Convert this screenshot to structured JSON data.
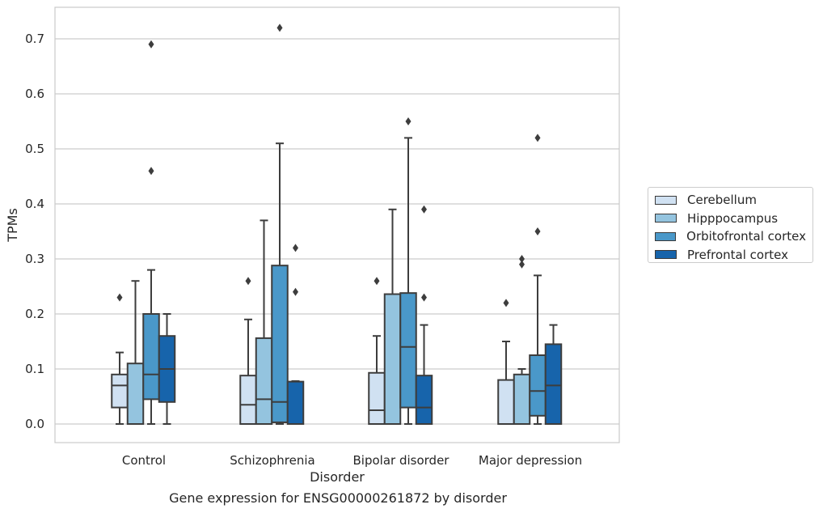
{
  "chart_data": {
    "type": "boxplot",
    "title": "Gene expression for ENSG00000261872 by disorder",
    "xlabel": "Disorder",
    "ylabel": "TPMs",
    "ylim": [
      -0.035,
      0.757
    ],
    "yticks": [
      0.0,
      0.1,
      0.2,
      0.3,
      0.4,
      0.5,
      0.6,
      0.7
    ],
    "ytick_labels": [
      "0.0",
      "0.1",
      "0.2",
      "0.3",
      "0.4",
      "0.5",
      "0.6",
      "0.7"
    ],
    "grid": true,
    "legend_position": "right",
    "categories": [
      "Control",
      "Schizophrenia",
      "Bipolar disorder",
      "Major depression"
    ],
    "series": [
      {
        "name": "Cerebellum",
        "color": "#d0e1f2",
        "boxes": [
          {
            "whislo": 0.0,
            "q1": 0.03,
            "med": 0.07,
            "q3": 0.09,
            "whishi": 0.13,
            "fliers": [
              0.23
            ]
          },
          {
            "whislo": 0.0,
            "q1": 0.0,
            "med": 0.035,
            "q3": 0.088,
            "whishi": 0.19,
            "fliers": [
              0.26
            ]
          },
          {
            "whislo": 0.0,
            "q1": 0.0,
            "med": 0.025,
            "q3": 0.093,
            "whishi": 0.16,
            "fliers": [
              0.26
            ]
          },
          {
            "whislo": 0.0,
            "q1": 0.0,
            "med": 0.0,
            "q3": 0.08,
            "whishi": 0.15,
            "fliers": [
              0.22
            ]
          }
        ]
      },
      {
        "name": "Hipppocampus",
        "color": "#94c4df",
        "boxes": [
          {
            "whislo": 0.0,
            "q1": 0.0,
            "med": 0.0,
            "q3": 0.11,
            "whishi": 0.26,
            "fliers": []
          },
          {
            "whislo": 0.0,
            "q1": 0.0,
            "med": 0.045,
            "q3": 0.156,
            "whishi": 0.37,
            "fliers": []
          },
          {
            "whislo": 0.0,
            "q1": 0.0,
            "med": 0.0,
            "q3": 0.236,
            "whishi": 0.39,
            "fliers": []
          },
          {
            "whislo": 0.0,
            "q1": 0.0,
            "med": 0.0,
            "q3": 0.09,
            "whishi": 0.1,
            "fliers": [
              0.29,
              0.3
            ]
          }
        ]
      },
      {
        "name": "Orbitofrontal cortex",
        "color": "#4a98c9",
        "boxes": [
          {
            "whislo": 0.0,
            "q1": 0.045,
            "med": 0.09,
            "q3": 0.2,
            "whishi": 0.28,
            "fliers": [
              0.46,
              0.69
            ]
          },
          {
            "whislo": 0.0,
            "q1": 0.003,
            "med": 0.04,
            "q3": 0.288,
            "whishi": 0.51,
            "fliers": [
              0.72
            ]
          },
          {
            "whislo": 0.0,
            "q1": 0.03,
            "med": 0.14,
            "q3": 0.238,
            "whishi": 0.52,
            "fliers": [
              0.55
            ]
          },
          {
            "whislo": 0.0,
            "q1": 0.015,
            "med": 0.06,
            "q3": 0.125,
            "whishi": 0.27,
            "fliers": [
              0.35,
              0.52
            ]
          }
        ]
      },
      {
        "name": "Prefrontal cortex",
        "color": "#1764ab",
        "boxes": [
          {
            "whislo": 0.0,
            "q1": 0.04,
            "med": 0.1,
            "q3": 0.16,
            "whishi": 0.2,
            "fliers": []
          },
          {
            "whislo": 0.0,
            "q1": 0.0,
            "med": 0.0,
            "q3": 0.077,
            "whishi": 0.078,
            "fliers": [
              0.24,
              0.32
            ]
          },
          {
            "whislo": 0.0,
            "q1": 0.0,
            "med": 0.03,
            "q3": 0.088,
            "whishi": 0.18,
            "fliers": [
              0.23,
              0.39
            ]
          },
          {
            "whislo": 0.0,
            "q1": 0.0,
            "med": 0.07,
            "q3": 0.145,
            "whishi": 0.18,
            "fliers": []
          }
        ]
      }
    ]
  },
  "colors": {
    "grid": "#cccccc",
    "frame": "#cccccc",
    "box_edge": "#3d3d3d"
  }
}
